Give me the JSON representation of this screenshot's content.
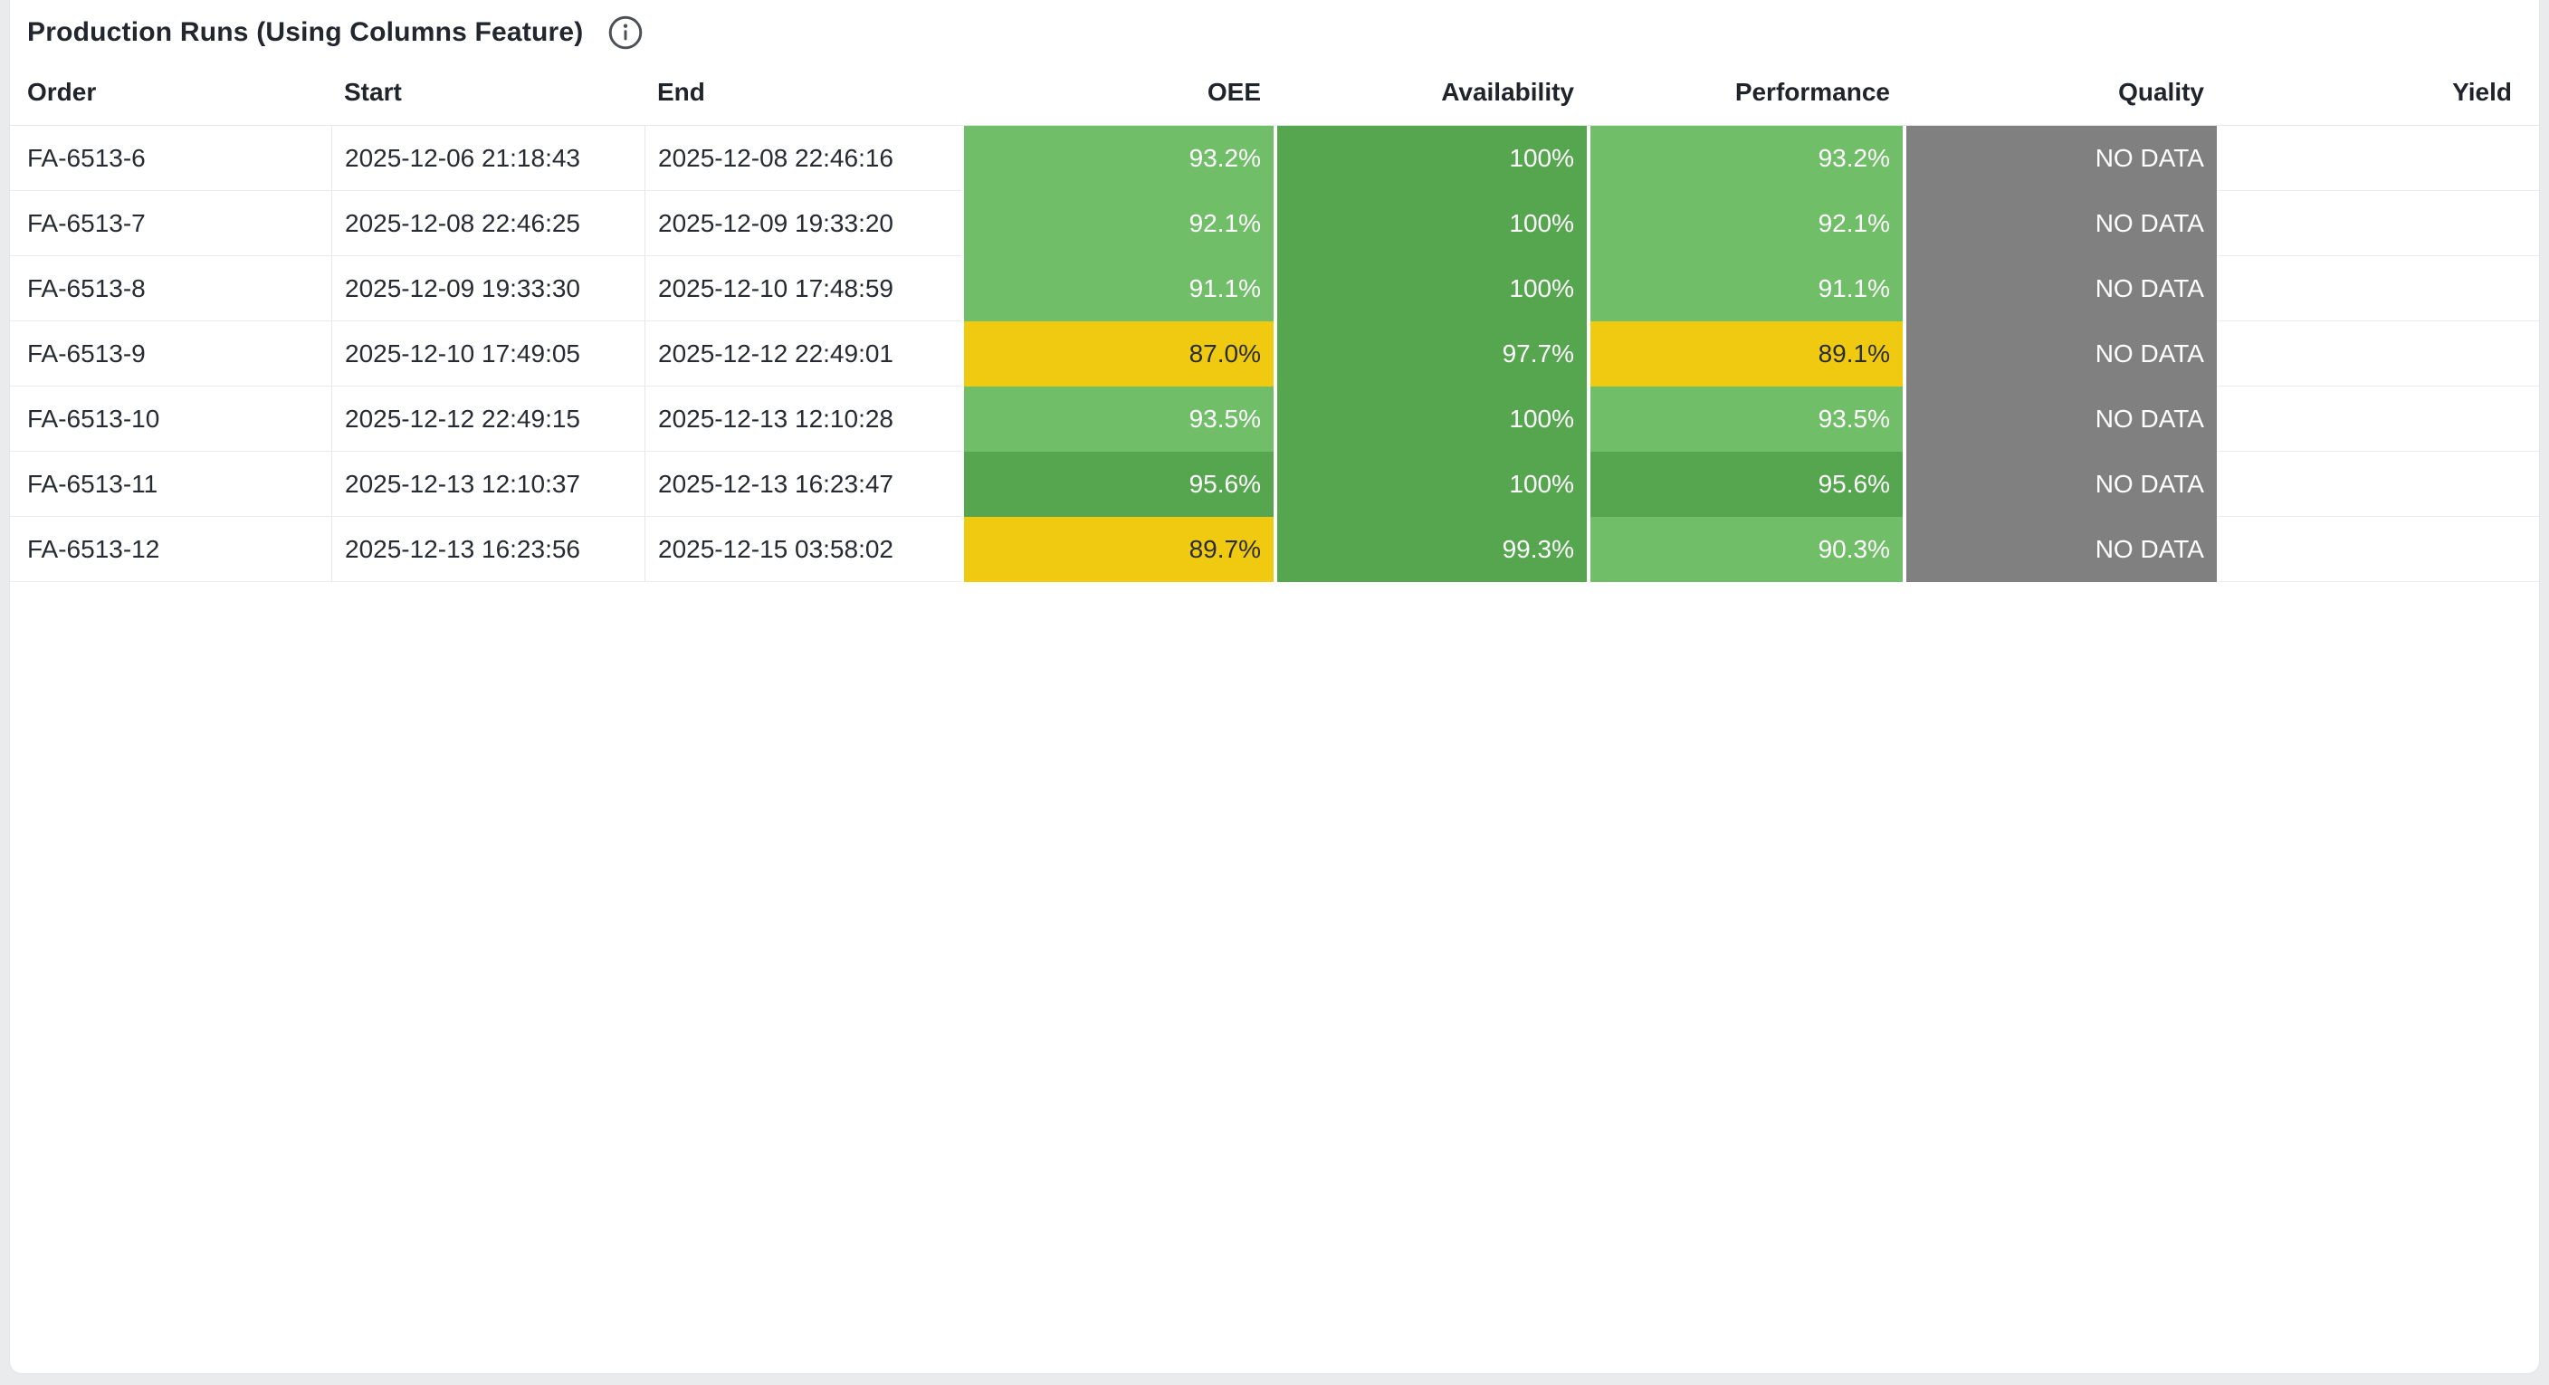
{
  "header": {
    "title": "Production Runs (Using Columns Feature)",
    "info_icon": "info-icon"
  },
  "colors": {
    "band_high_green": "#55a64f",
    "band_mid_green": "#71be69",
    "band_warn_yellow": "#f0ca10",
    "band_nodata_gray": "#808080",
    "cell_text_on_color": "#ffffff",
    "cell_text_on_yellow": "#2a2e33",
    "body_text": "#262b31",
    "header_text": "#1f242b",
    "row_divider": "#e9eaec",
    "page_background": "#eaebed",
    "card_background": "#ffffff"
  },
  "table": {
    "columns": [
      {
        "id": "order",
        "label": "Order",
        "align": "left",
        "type": "text"
      },
      {
        "id": "start",
        "label": "Start",
        "align": "left",
        "type": "text"
      },
      {
        "id": "end",
        "label": "End",
        "align": "left",
        "type": "text"
      },
      {
        "id": "oee",
        "label": "OEE",
        "align": "right",
        "type": "metric"
      },
      {
        "id": "availability",
        "label": "Availability",
        "align": "right",
        "type": "metric"
      },
      {
        "id": "performance",
        "label": "Performance",
        "align": "right",
        "type": "metric"
      },
      {
        "id": "quality",
        "label": "Quality",
        "align": "right",
        "type": "metric"
      },
      {
        "id": "yield",
        "label": "Yield",
        "align": "right",
        "type": "metric"
      }
    ],
    "rows": [
      {
        "order": "FA-6513-6",
        "start": "2025-12-06 21:18:43",
        "end": "2025-12-08 22:46:16",
        "oee": {
          "text": "93.2%",
          "band": "mid"
        },
        "availability": {
          "text": "100%",
          "band": "high"
        },
        "performance": {
          "text": "93.2%",
          "band": "mid"
        },
        "quality": {
          "text": "NO DATA",
          "band": "nodata"
        },
        "yield": {
          "text": "",
          "band": "empty"
        }
      },
      {
        "order": "FA-6513-7",
        "start": "2025-12-08 22:46:25",
        "end": "2025-12-09 19:33:20",
        "oee": {
          "text": "92.1%",
          "band": "mid"
        },
        "availability": {
          "text": "100%",
          "band": "high"
        },
        "performance": {
          "text": "92.1%",
          "band": "mid"
        },
        "quality": {
          "text": "NO DATA",
          "band": "nodata"
        },
        "yield": {
          "text": "",
          "band": "empty"
        }
      },
      {
        "order": "FA-6513-8",
        "start": "2025-12-09 19:33:30",
        "end": "2025-12-10 17:48:59",
        "oee": {
          "text": "91.1%",
          "band": "mid"
        },
        "availability": {
          "text": "100%",
          "band": "high"
        },
        "performance": {
          "text": "91.1%",
          "band": "mid"
        },
        "quality": {
          "text": "NO DATA",
          "band": "nodata"
        },
        "yield": {
          "text": "",
          "band": "empty"
        }
      },
      {
        "order": "FA-6513-9",
        "start": "2025-12-10 17:49:05",
        "end": "2025-12-12 22:49:01",
        "oee": {
          "text": "87.0%",
          "band": "warn"
        },
        "availability": {
          "text": "97.7%",
          "band": "high"
        },
        "performance": {
          "text": "89.1%",
          "band": "warn"
        },
        "quality": {
          "text": "NO DATA",
          "band": "nodata"
        },
        "yield": {
          "text": "",
          "band": "empty"
        }
      },
      {
        "order": "FA-6513-10",
        "start": "2025-12-12 22:49:15",
        "end": "2025-12-13 12:10:28",
        "oee": {
          "text": "93.5%",
          "band": "mid"
        },
        "availability": {
          "text": "100%",
          "band": "high"
        },
        "performance": {
          "text": "93.5%",
          "band": "mid"
        },
        "quality": {
          "text": "NO DATA",
          "band": "nodata"
        },
        "yield": {
          "text": "",
          "band": "empty"
        }
      },
      {
        "order": "FA-6513-11",
        "start": "2025-12-13 12:10:37",
        "end": "2025-12-13 16:23:47",
        "oee": {
          "text": "95.6%",
          "band": "high"
        },
        "availability": {
          "text": "100%",
          "band": "high"
        },
        "performance": {
          "text": "95.6%",
          "band": "high"
        },
        "quality": {
          "text": "NO DATA",
          "band": "nodata"
        },
        "yield": {
          "text": "",
          "band": "empty"
        }
      },
      {
        "order": "FA-6513-12",
        "start": "2025-12-13 16:23:56",
        "end": "2025-12-15 03:58:02",
        "oee": {
          "text": "89.7%",
          "band": "warn"
        },
        "availability": {
          "text": "99.3%",
          "band": "high"
        },
        "performance": {
          "text": "90.3%",
          "band": "mid"
        },
        "quality": {
          "text": "NO DATA",
          "band": "nodata"
        },
        "yield": {
          "text": "",
          "band": "empty"
        }
      }
    ]
  }
}
